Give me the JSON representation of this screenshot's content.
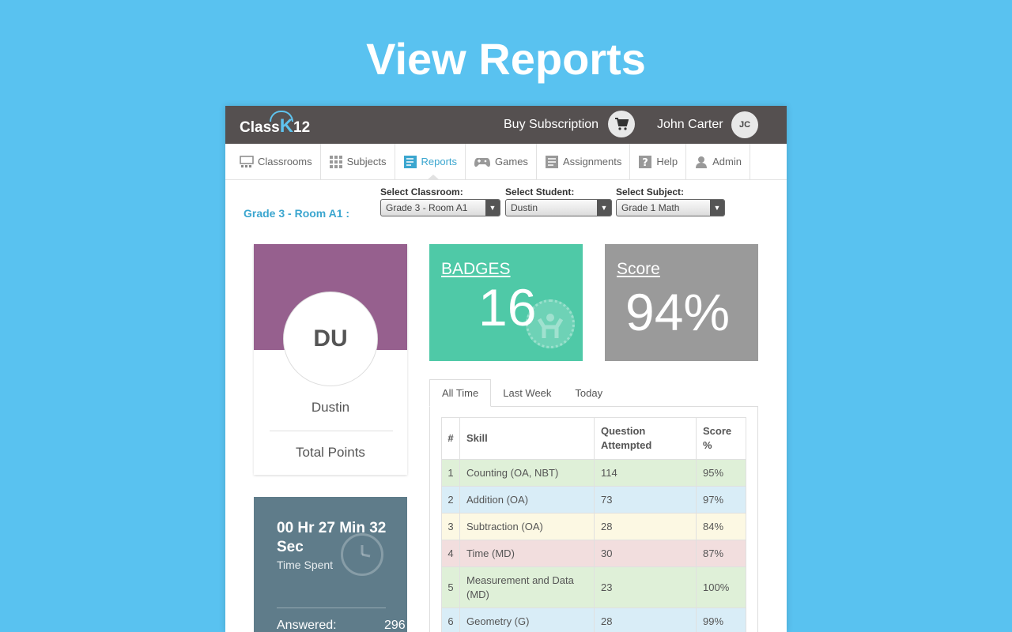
{
  "headline": "View Reports",
  "app": {
    "logo": {
      "prefix": "Class",
      "k": "K",
      "suffix": "12"
    },
    "buy_label": "Buy Subscription",
    "user_name": "John Carter",
    "user_initials": "JC",
    "nav": [
      {
        "label": "Classrooms",
        "icon": "classroom-icon"
      },
      {
        "label": "Subjects",
        "icon": "grid-icon"
      },
      {
        "label": "Reports",
        "icon": "report-icon"
      },
      {
        "label": "Games",
        "icon": "gamepad-icon"
      },
      {
        "label": "Assignments",
        "icon": "assignment-icon"
      },
      {
        "label": "Help",
        "icon": "help-icon"
      },
      {
        "label": "Admin",
        "icon": "user-icon"
      }
    ],
    "room_label": "Grade 3 - Room A1 :",
    "filters": {
      "classroom": {
        "label": "Select Classroom:",
        "value": "Grade 3 - Room A1"
      },
      "student": {
        "label": "Select Student:",
        "value": "Dustin"
      },
      "subject": {
        "label": "Select Subject:",
        "value": "Grade 1 Math"
      }
    },
    "profile": {
      "initials": "DU",
      "name": "Dustin",
      "points_label": "Total Points"
    },
    "time_card": {
      "value": "00 Hr 27 Min 32 Sec",
      "label": "Time Spent",
      "answered_label": "Answered:",
      "answered_value": "296"
    },
    "badges": {
      "title": "BADGES",
      "value": "16"
    },
    "score": {
      "title": "Score",
      "value": "94%"
    },
    "tabs": [
      "All Time",
      "Last Week",
      "Today"
    ],
    "table": {
      "headers": {
        "num": "#",
        "skill": "Skill",
        "questions": "Question Attempted",
        "score": "Score %"
      },
      "rows": [
        {
          "num": "1",
          "skill": "Counting (OA, NBT)",
          "questions": "114",
          "score": "95%"
        },
        {
          "num": "2",
          "skill": "Addition (OA)",
          "questions": "73",
          "score": "97%"
        },
        {
          "num": "3",
          "skill": "Subtraction (OA)",
          "questions": "28",
          "score": "84%"
        },
        {
          "num": "4",
          "skill": "Time (MD)",
          "questions": "30",
          "score": "87%"
        },
        {
          "num": "5",
          "skill": "Measurement and Data (MD)",
          "questions": "23",
          "score": "100%"
        },
        {
          "num": "6",
          "skill": "Geometry (G)",
          "questions": "28",
          "score": "99%"
        }
      ]
    }
  }
}
